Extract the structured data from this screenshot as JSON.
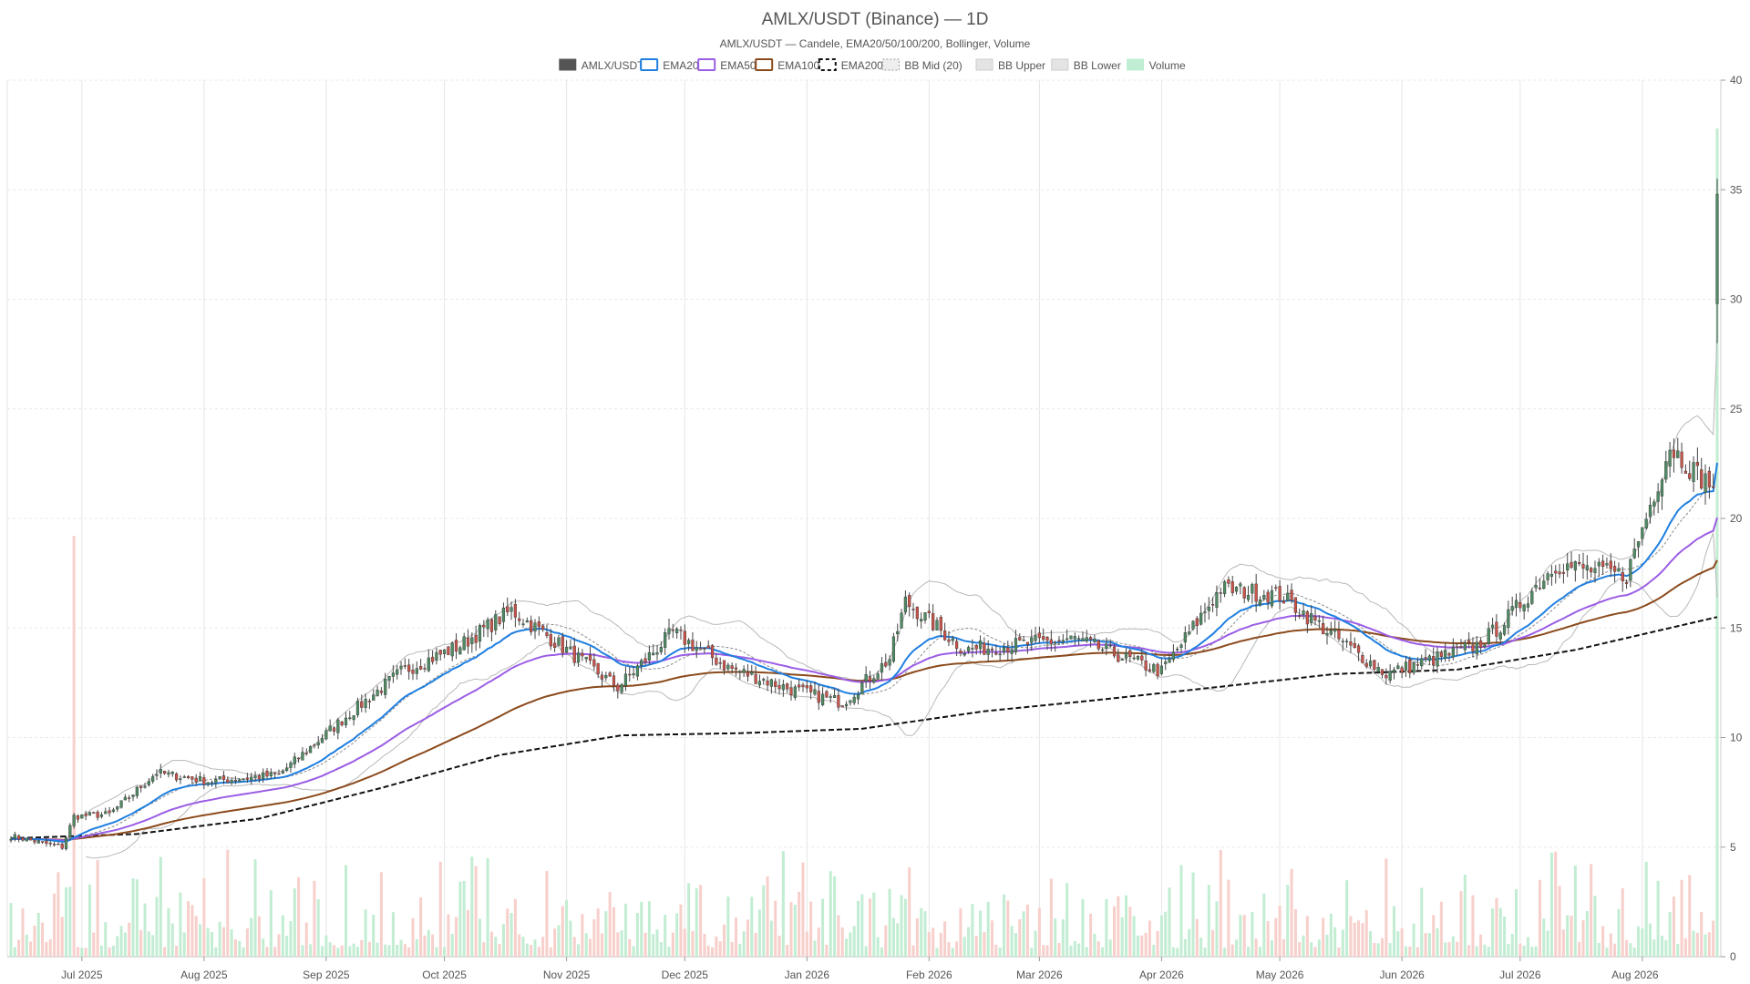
{
  "chart_data": {
    "type": "candlestick",
    "title": "AMLX/USDT (Binance) — 1D",
    "subtitle": "AMLX/USDT — Candele, EMA20/50/100/200, Bollinger, Volume",
    "legend": {
      "placement": "top-center",
      "items": [
        {
          "label": "AMLX/USDT",
          "style": "solid",
          "color": "#555555"
        },
        {
          "label": "EMA20",
          "style": "line",
          "color": "#1f7fe0"
        },
        {
          "label": "EMA50",
          "style": "line",
          "color": "#9b5de5"
        },
        {
          "label": "EMA100",
          "style": "line",
          "color": "#8b4a1c"
        },
        {
          "label": "EMA200",
          "style": "dashed",
          "color": "#111111"
        },
        {
          "label": "BB Mid (20)",
          "style": "dotted",
          "color": "#999999"
        },
        {
          "label": "BB Upper",
          "style": "band",
          "color": "#bbbbbb"
        },
        {
          "label": "BB Lower",
          "style": "band",
          "color": "#bbbbbb"
        },
        {
          "label": "Volume",
          "style": "bar",
          "color": "#bfeed4"
        }
      ]
    },
    "x_axis": {
      "tick_labels": [
        "Jul 2025",
        "Aug 2025",
        "Sep 2025",
        "Oct 2025",
        "Nov 2025",
        "Dec 2025",
        "Jan 2026",
        "Feb 2026",
        "Mar 2026",
        "Apr 2026",
        "May 2026",
        "Jun 2026",
        "Jul 2026",
        "Aug 2026"
      ],
      "range": [
        "2025-06-13",
        "2026-08-20"
      ]
    },
    "y_axis": {
      "position": "right",
      "ylim": [
        0,
        40
      ],
      "ticks": [
        0,
        5,
        10,
        15,
        20,
        25,
        30,
        35,
        40
      ],
      "grid": true
    },
    "colors": {
      "up": "#4f8a63",
      "down": "#c8534a",
      "wick": "#444444",
      "vol_up": "#c2edd3",
      "vol_down": "#f7cfcb",
      "ema20": "#1f7fe0",
      "ema50": "#9b5de5",
      "ema100": "#8b4a1c",
      "ema200": "#111111",
      "bb": "#b8b8b8",
      "bb_mid": "#8a8a8a"
    },
    "price_path": [
      [
        "2025-06-13",
        5.5
      ],
      [
        "2025-06-26",
        5.0
      ],
      [
        "2025-06-29",
        6.4
      ],
      [
        "2025-07-08",
        6.5
      ],
      [
        "2025-07-20",
        8.4
      ],
      [
        "2025-08-02",
        8.0
      ],
      [
        "2025-08-20",
        8.3
      ],
      [
        "2025-09-05",
        10.8
      ],
      [
        "2025-09-20",
        13.0
      ],
      [
        "2025-10-05",
        14.2
      ],
      [
        "2025-10-18",
        15.8
      ],
      [
        "2025-11-01",
        14.0
      ],
      [
        "2025-11-14",
        12.3
      ],
      [
        "2025-11-28",
        14.8
      ],
      [
        "2025-12-12",
        13.2
      ],
      [
        "2025-12-28",
        12.2
      ],
      [
        "2026-01-10",
        11.6
      ],
      [
        "2026-01-22",
        13.6
      ],
      [
        "2026-01-26",
        16.2
      ],
      [
        "2026-02-10",
        14.0
      ],
      [
        "2026-03-10",
        14.5
      ],
      [
        "2026-04-01",
        13.0
      ],
      [
        "2026-04-16",
        16.8
      ],
      [
        "2026-05-01",
        16.5
      ],
      [
        "2026-05-18",
        14.2
      ],
      [
        "2026-05-28",
        12.9
      ],
      [
        "2026-06-20",
        14.2
      ],
      [
        "2026-06-26",
        15.1
      ],
      [
        "2026-07-10",
        17.9
      ],
      [
        "2026-07-28",
        17.4
      ],
      [
        "2026-08-08",
        23.3
      ],
      [
        "2026-08-15",
        22.0
      ],
      [
        "2026-08-19",
        21.5
      ],
      [
        "2026-08-20",
        34.8
      ]
    ],
    "ema200_path": [
      [
        "2025-06-13",
        5.4
      ],
      [
        "2025-07-15",
        5.6
      ],
      [
        "2025-08-15",
        6.3
      ],
      [
        "2025-09-15",
        7.7
      ],
      [
        "2025-10-15",
        9.2
      ],
      [
        "2025-11-15",
        10.1
      ],
      [
        "2025-12-15",
        10.2
      ],
      [
        "2026-01-15",
        10.4
      ],
      [
        "2026-02-15",
        11.2
      ],
      [
        "2026-03-15",
        11.7
      ],
      [
        "2026-04-15",
        12.3
      ],
      [
        "2026-05-15",
        12.9
      ],
      [
        "2026-06-15",
        13.1
      ],
      [
        "2026-07-15",
        14.0
      ],
      [
        "2026-08-20",
        15.5
      ]
    ],
    "volume_spikes": [
      {
        "date": "2025-06-29",
        "value": 19.2,
        "direction": "down"
      },
      {
        "date": "2026-08-20",
        "value": 37.8,
        "direction": "up"
      }
    ]
  }
}
